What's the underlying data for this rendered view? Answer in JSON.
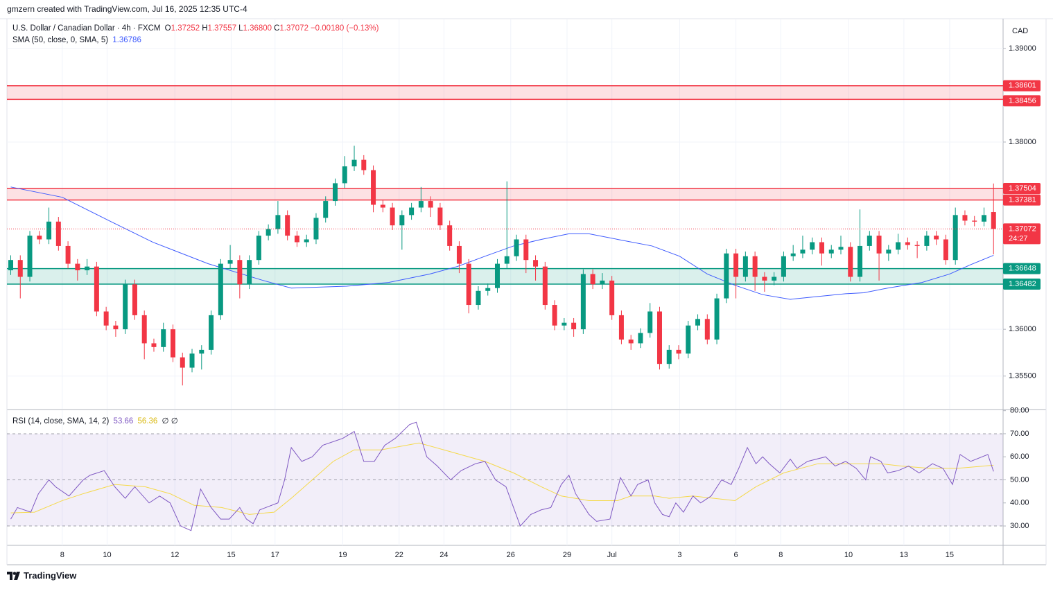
{
  "attribution": "gmzern created with TradingView.com, Jul 16, 2025 12:35 UTC-4",
  "footer": "TradingView",
  "chart_data": {
    "type": "candlestick",
    "currency": "CAD",
    "legend": {
      "symbol": "U.S. Dollar / Canadian Dollar · 4h · FXCM",
      "ohlc": [
        {
          "key": "O",
          "label": "1.37252"
        },
        {
          "key": "H",
          "label": "1.37557"
        },
        {
          "key": "L",
          "label": "1.36800"
        },
        {
          "key": "C",
          "label": "1.37072"
        }
      ],
      "change": "−0.00180 (−0.13%)"
    },
    "up_color": "#089981",
    "down_color": "#f23645",
    "xlim": [
      -0.4,
      104
    ],
    "xticks": [
      {
        "value": 5.4,
        "label": "8"
      },
      {
        "value": 10.1,
        "label": "10"
      },
      {
        "value": 17.2,
        "label": "12"
      },
      {
        "value": 23.1,
        "label": "15"
      },
      {
        "value": 27.7,
        "label": "17"
      },
      {
        "value": 34.8,
        "label": "19"
      },
      {
        "value": 40.7,
        "label": "22"
      },
      {
        "value": 45.4,
        "label": "24"
      },
      {
        "value": 52.4,
        "label": "26"
      },
      {
        "value": 58.3,
        "label": "29"
      },
      {
        "value": 63.0,
        "label": "Jul"
      },
      {
        "value": 70.1,
        "label": "3"
      },
      {
        "value": 76.0,
        "label": "6"
      },
      {
        "value": 80.7,
        "label": "8"
      },
      {
        "value": 87.8,
        "label": "10"
      },
      {
        "value": 93.6,
        "label": "13"
      },
      {
        "value": 98.4,
        "label": "15"
      }
    ],
    "ylim": [
      1.3515,
      1.3931
    ],
    "yticks": [
      {
        "value": 1.39,
        "label": "1.39000"
      },
      {
        "value": 1.38,
        "label": "1.38000"
      },
      {
        "value": 1.36,
        "label": "1.36000"
      },
      {
        "value": 1.355,
        "label": "1.35500"
      }
    ],
    "grid": true,
    "candles": {
      "open": [
        1.3663,
        1.3674,
        1.3656,
        1.37,
        1.3696,
        1.3715,
        1.3689,
        1.367,
        1.3663,
        1.3667,
        1.3619,
        1.3604,
        1.36,
        1.3648,
        1.3615,
        1.3585,
        1.3581,
        1.36,
        1.357,
        1.3559,
        1.3574,
        1.3578,
        1.3615,
        1.367,
        1.3674,
        1.3648,
        1.3674,
        1.37,
        1.3707,
        1.3722,
        1.37,
        1.3693,
        1.3696,
        1.3719,
        1.3737,
        1.3756,
        1.3774,
        1.3781,
        1.377,
        1.3733,
        1.373,
        1.3711,
        1.3722,
        1.373,
        1.3737,
        1.373,
        1.3711,
        1.3689,
        1.367,
        1.3626,
        1.3641,
        1.3644,
        1.367,
        1.3678,
        1.3696,
        1.3674,
        1.3667,
        1.3626,
        1.3604,
        1.3607,
        1.36,
        1.3659,
        1.3648,
        1.3652,
        1.3615,
        1.3589,
        1.3585,
        1.3596,
        1.3619,
        1.3563,
        1.3578,
        1.3574,
        1.3604,
        1.3611,
        1.3589,
        1.3633,
        1.3681,
        1.3656,
        1.3678,
        1.3656,
        1.3652,
        1.3656,
        1.3678,
        1.3681,
        1.3685,
        1.3693,
        1.3681,
        1.3685,
        1.3688,
        1.3656,
        1.3689,
        1.37,
        1.3681,
        1.3685,
        1.3693,
        1.369,
        1.3689,
        1.37,
        1.3696,
        1.3674,
        1.3722,
        1.3716,
        1.3715,
        1.37252
      ],
      "high": [
        1.3679,
        1.3679,
        1.3705,
        1.3705,
        1.373,
        1.372,
        1.3694,
        1.3675,
        1.3675,
        1.3672,
        1.3624,
        1.3609,
        1.3653,
        1.3653,
        1.362,
        1.359,
        1.3607,
        1.3605,
        1.3575,
        1.3579,
        1.3583,
        1.362,
        1.3675,
        1.369,
        1.3679,
        1.3679,
        1.3705,
        1.3712,
        1.3737,
        1.3727,
        1.3705,
        1.3701,
        1.3724,
        1.3742,
        1.3761,
        1.3785,
        1.3796,
        1.3786,
        1.3775,
        1.3738,
        1.3735,
        1.3727,
        1.3735,
        1.3752,
        1.3742,
        1.3735,
        1.3716,
        1.3694,
        1.3675,
        1.3646,
        1.3649,
        1.3675,
        1.3758,
        1.3701,
        1.3701,
        1.3679,
        1.3672,
        1.3631,
        1.3612,
        1.3612,
        1.3664,
        1.3664,
        1.366,
        1.3657,
        1.362,
        1.3594,
        1.3601,
        1.3628,
        1.3624,
        1.3583,
        1.3583,
        1.3609,
        1.3616,
        1.3616,
        1.3638,
        1.3686,
        1.3686,
        1.3683,
        1.3683,
        1.3661,
        1.3661,
        1.3683,
        1.369,
        1.37,
        1.3698,
        1.3698,
        1.369,
        1.37,
        1.3693,
        1.3728,
        1.3705,
        1.3705,
        1.369,
        1.3702,
        1.3698,
        1.3694,
        1.3705,
        1.3705,
        1.3701,
        1.373,
        1.3727,
        1.3721,
        1.373,
        1.37557
      ],
      "low": [
        1.3658,
        1.3633,
        1.3651,
        1.3691,
        1.3691,
        1.3684,
        1.3665,
        1.3652,
        1.3658,
        1.3614,
        1.3599,
        1.3592,
        1.3595,
        1.361,
        1.3568,
        1.3576,
        1.3576,
        1.3565,
        1.354,
        1.3554,
        1.3557,
        1.3573,
        1.361,
        1.3665,
        1.3633,
        1.3643,
        1.3669,
        1.3695,
        1.3702,
        1.3695,
        1.3688,
        1.3688,
        1.3691,
        1.3714,
        1.3732,
        1.3751,
        1.3769,
        1.3765,
        1.3725,
        1.3725,
        1.3706,
        1.3685,
        1.3717,
        1.3725,
        1.372,
        1.3706,
        1.3684,
        1.366,
        1.3617,
        1.3621,
        1.3636,
        1.3639,
        1.3665,
        1.3673,
        1.366,
        1.3652,
        1.3621,
        1.3599,
        1.3599,
        1.3592,
        1.3595,
        1.3643,
        1.3643,
        1.361,
        1.3584,
        1.3578,
        1.358,
        1.3591,
        1.3557,
        1.3558,
        1.3568,
        1.3569,
        1.3599,
        1.3584,
        1.3584,
        1.3628,
        1.3633,
        1.3651,
        1.3641,
        1.364,
        1.3647,
        1.3651,
        1.3673,
        1.3676,
        1.368,
        1.3668,
        1.3676,
        1.368,
        1.3651,
        1.3651,
        1.3684,
        1.3652,
        1.3673,
        1.368,
        1.3685,
        1.3676,
        1.3684,
        1.369,
        1.3669,
        1.3669,
        1.3711,
        1.371,
        1.371,
        1.368
      ],
      "close": [
        1.3674,
        1.3656,
        1.37,
        1.3696,
        1.3715,
        1.3689,
        1.367,
        1.3663,
        1.3667,
        1.3619,
        1.3604,
        1.36,
        1.3648,
        1.3615,
        1.3585,
        1.3581,
        1.36,
        1.357,
        1.3559,
        1.3574,
        1.3578,
        1.3615,
        1.367,
        1.3674,
        1.3648,
        1.3674,
        1.37,
        1.3707,
        1.3722,
        1.37,
        1.3693,
        1.3696,
        1.3719,
        1.3737,
        1.3756,
        1.3774,
        1.3781,
        1.377,
        1.3733,
        1.373,
        1.3711,
        1.3722,
        1.373,
        1.3737,
        1.373,
        1.3711,
        1.3689,
        1.367,
        1.3626,
        1.3641,
        1.3644,
        1.367,
        1.3678,
        1.3696,
        1.3674,
        1.3667,
        1.3626,
        1.3604,
        1.3607,
        1.36,
        1.3659,
        1.3648,
        1.3652,
        1.3615,
        1.3589,
        1.3585,
        1.3596,
        1.3619,
        1.3563,
        1.3578,
        1.3574,
        1.3604,
        1.3611,
        1.3589,
        1.3633,
        1.3681,
        1.3656,
        1.3678,
        1.3656,
        1.3652,
        1.3656,
        1.3678,
        1.3681,
        1.3685,
        1.3693,
        1.3681,
        1.3685,
        1.3688,
        1.3656,
        1.3689,
        1.37,
        1.3681,
        1.3685,
        1.3693,
        1.369,
        1.3689,
        1.37,
        1.3696,
        1.3674,
        1.3722,
        1.3716,
        1.3715,
        1.3722,
        1.37072
      ]
    },
    "sma": {
      "label": "SMA (50, close, 0, SMA, 5)",
      "last": 1.36786,
      "color": "#3d5afe",
      "x": [
        0,
        5.4,
        10.5,
        14.9,
        20.7,
        26.5,
        29.4,
        35.2,
        39.6,
        43.9,
        46.8,
        49.7,
        52.7,
        55.6,
        58.5,
        60.6,
        63.6,
        67.2,
        70.1,
        73.0,
        75.9,
        78.8,
        81.7,
        84.6,
        87.5,
        89.4,
        91.9,
        95.5,
        98.4,
        100.6,
        103
      ],
      "values": [
        1.3752,
        1.3741,
        1.3715,
        1.3693,
        1.367,
        1.3652,
        1.3644,
        1.3646,
        1.365,
        1.3659,
        1.3667,
        1.3678,
        1.3689,
        1.3696,
        1.3702,
        1.3702,
        1.3696,
        1.3689,
        1.3678,
        1.3659,
        1.3647,
        1.3637,
        1.3632,
        1.3635,
        1.3638,
        1.3639,
        1.3644,
        1.365,
        1.3659,
        1.3669,
        1.3679
      ]
    },
    "zones": [
      {
        "top": 1.38601,
        "bottom": 1.38456,
        "color": "#f23645"
      },
      {
        "top": 1.37504,
        "bottom": 1.37381,
        "color": "#f23645"
      },
      {
        "top": 1.36648,
        "bottom": 1.36482,
        "color": "#089981"
      }
    ],
    "last_price": 1.37072,
    "countdown": "24:27",
    "rsi": {
      "label": "RSI (14, close, SMA, 14, 2)",
      "last": 53.66,
      "ma_last": 56.36,
      "extra": "∅ ∅",
      "color": "#7e57c2",
      "ma_color": "#f5d94a",
      "ylim": [
        21.6,
        80.2
      ],
      "yticks": [
        {
          "value": 30,
          "label": "30.00"
        },
        {
          "value": 40,
          "label": "40.00"
        },
        {
          "value": 50,
          "label": "50.00"
        },
        {
          "value": 60,
          "label": "60.00"
        },
        {
          "value": 70,
          "label": "70.00"
        },
        {
          "value": 80,
          "label": "80.00"
        }
      ],
      "band": [
        30,
        70
      ],
      "mid": 50,
      "x": [
        0,
        0.7,
        2.1,
        2.9,
        4.0,
        4.7,
        6.1,
        7.6,
        8.3,
        9.8,
        10.9,
        12.0,
        13.0,
        14.5,
        15.6,
        16.7,
        17.8,
        18.9,
        19.9,
        21.0,
        22.0,
        22.9,
        24.0,
        24.7,
        25.4,
        26.1,
        28.0,
        28.7,
        29.4,
        30.5,
        31.6,
        32.7,
        34.8,
        36.0,
        37.0,
        38.1,
        39.2,
        40.3,
        41.8,
        42.5,
        43.6,
        44.7,
        46.1,
        47.2,
        48.7,
        49.7,
        50.8,
        51.9,
        53.4,
        54.5,
        55.6,
        56.6,
        57.7,
        58.5,
        59.2,
        60.6,
        61.4,
        62.8,
        63.9,
        65.0,
        65.7,
        66.8,
        67.5,
        68.3,
        69.0,
        69.7,
        70.5,
        71.5,
        72.3,
        73.4,
        74.5,
        75.5,
        76.3,
        77.2,
        78.1,
        78.8,
        79.5,
        80.6,
        81.7,
        82.4,
        83.5,
        85.4,
        86.4,
        87.5,
        88.6,
        89.6,
        90.1,
        91.2,
        91.9,
        93.0,
        94.1,
        95.2,
        96.6,
        97.7,
        98.7,
        99.5,
        100.6,
        102.4,
        103
      ],
      "values": [
        33,
        38,
        36,
        44,
        50,
        47,
        43,
        50,
        52,
        54,
        47,
        42,
        47,
        40,
        43,
        40,
        30,
        28,
        46,
        38,
        33,
        33,
        38,
        33,
        31,
        37,
        40,
        50,
        64,
        58,
        60,
        65,
        68,
        71,
        58,
        58,
        65,
        68,
        74,
        75,
        60,
        56,
        50,
        54,
        57,
        58,
        50,
        47,
        30,
        35,
        37,
        38,
        48,
        52,
        44,
        35,
        32,
        33,
        51,
        43,
        48,
        50,
        40,
        35,
        34,
        40,
        36,
        43,
        40,
        43,
        50,
        48,
        55,
        64,
        57,
        60,
        57,
        53,
        59,
        55,
        58,
        60,
        56,
        58,
        55,
        50,
        60,
        58,
        53,
        54,
        56,
        53,
        57,
        55,
        48,
        61,
        58,
        61,
        53.66
      ],
      "ma_x": [
        0,
        2.5,
        5.4,
        7.6,
        10.9,
        14.1,
        16.7,
        19.2,
        22.1,
        25.0,
        27.6,
        29.4,
        31.6,
        33.8,
        36.0,
        38.8,
        42.8,
        45.4,
        49.7,
        52.7,
        55.6,
        57.7,
        60.6,
        63.6,
        65.0,
        67.5,
        69.0,
        71.5,
        73.7,
        75.9,
        78.1,
        81.0,
        84.6,
        88.3,
        91.2,
        93.3,
        96.3,
        99.2,
        103
      ],
      "ma_values": [
        35.7,
        36,
        41,
        44,
        48,
        47,
        44,
        39,
        38,
        35,
        36,
        42,
        50,
        58,
        63,
        63,
        66,
        63,
        58,
        53,
        47,
        43,
        41,
        41,
        43,
        43,
        42,
        43,
        42,
        41,
        47,
        53,
        57,
        57,
        57,
        56,
        55,
        55,
        56.36
      ]
    }
  }
}
